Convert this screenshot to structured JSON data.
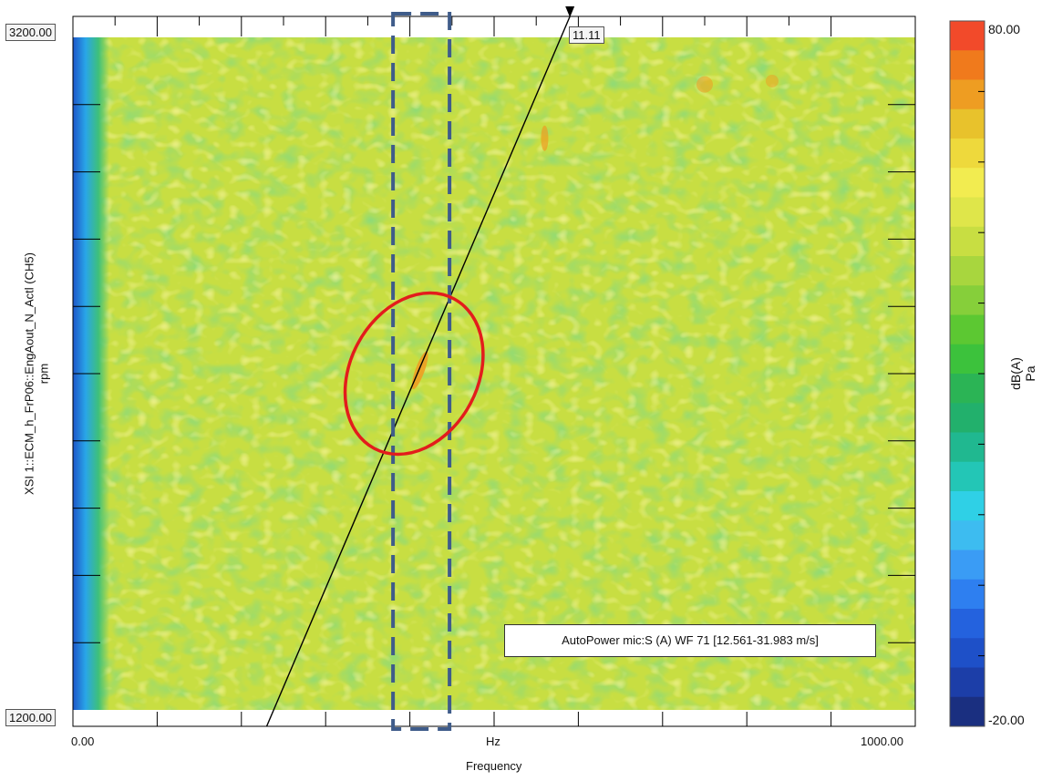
{
  "chart_data": {
    "type": "heatmap",
    "title": "",
    "xlabel": "Frequency",
    "x_unit": "Hz",
    "ylabel": "XSI 1::ECM_h_FrP06::EngAout_N_Actl (CH5)",
    "y_unit": "rpm",
    "xlim": [
      0,
      1000
    ],
    "ylim": [
      1200,
      3200
    ],
    "x_tick_labels": [
      "0.00",
      "1000.00"
    ],
    "y_tick_labels": [
      "1200.00",
      "3200.00"
    ],
    "colorbar": {
      "range": [
        -20,
        80
      ],
      "tick_labels": [
        "80.00",
        "-20.00"
      ],
      "units": [
        "dB(A)",
        "Pa"
      ],
      "colors": [
        "#1a2f80",
        "#1c3ea8",
        "#1e50c8",
        "#2462de",
        "#2e7ff0",
        "#3a9cf5",
        "#3dbcf0",
        "#2fd0e6",
        "#23c6b6",
        "#20b890",
        "#22b06c",
        "#2bb455",
        "#3cc23c",
        "#5cc832",
        "#86cf3a",
        "#a8d63e",
        "#c8de42",
        "#dfe64a",
        "#f2ec50",
        "#eed93c",
        "#e8c22c",
        "#ee9d22",
        "#f07a1c",
        "#f24a2a"
      ]
    },
    "order_line": {
      "label": "11.11",
      "points": [
        {
          "x": 230,
          "y": 1200
        },
        {
          "x": 590,
          "y": 3200
        }
      ]
    },
    "legend": "AutoPower mic:S (A) WF 71 [12.561-31.983 m/s]",
    "grid": false,
    "colors": {
      "dominant": "#c8de42",
      "cluster_hot": "#ee9d22",
      "dashed_box": "#3f5c8a",
      "ellipse": "#e31c1c"
    }
  }
}
